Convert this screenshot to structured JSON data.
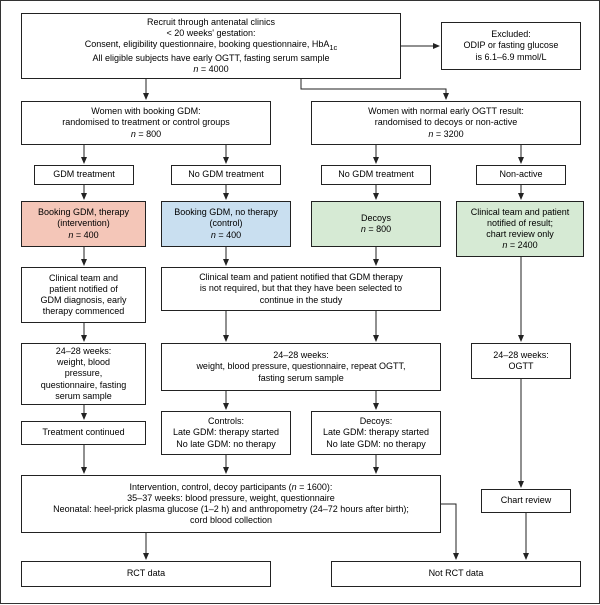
{
  "colors": {
    "border": "#222222",
    "bg": "#ffffff",
    "intervention": "#f4c6b8",
    "control": "#c9dff0",
    "decoys": "#d6ead4",
    "nonactive": "#d6ead4",
    "arrow": "#222222"
  },
  "boxes": {
    "recruit": "Recruit through antenatal clinics<br>&lt; 20 weeks' gestation:<br>Consent, eligibility questionnaire, booking questionnaire, HbA<sub>1c</sub><br>All eligible subjects have early OGTT, fasting serum sample<br><i>n</i> = 4000",
    "excluded": "Excluded:<br>ODIP or fasting glucose<br>is 6.1–6.9 mmol/L",
    "gdmRand": "Women with booking GDM:<br>randomised to treatment or control groups<br><i>n</i> = 800",
    "normalRand": "Women with normal early OGTT result:<br>randomised to decoys or non-active<br><i>n</i> = 3200",
    "gdmTx": "GDM treatment",
    "noGdmTx1": "No GDM treatment",
    "noGdmTx2": "No GDM treatment",
    "nonActive": "Non-active",
    "intervention": "Booking GDM, therapy<br>(intervention)<br><i>n</i> = 400",
    "control": "Booking GDM, no therapy<br>(control)<br><i>n</i> = 400",
    "decoys": "Decoys<br><i>n</i> = 800",
    "nonActiveBox": "Clinical team and patient<br>notified of result;<br>chart review only<br><i>n</i> = 2400",
    "notifyGDM": "Clinical team and<br>patient notified of<br>GDM diagnosis, early<br>therapy commenced",
    "notifyNoReq": "Clinical team and patient notified that GDM therapy<br>is not required, but that they have been selected to<br>continue in the study",
    "w24Int": "24–28 weeks:<br>weight, blood<br>pressure,<br>questionnaire, fasting<br>serum sample",
    "w24Ctrl": "24–28 weeks:<br>weight, blood pressure, questionnaire, repeat OGTT,<br>fasting serum sample",
    "w24Non": "24–28 weeks:<br>OGTT",
    "txCont": "Treatment continued",
    "controlsLate": "Controls:<br>Late GDM: therapy started<br>No late GDM: no therapy",
    "decoysLate": "Decoys:<br>Late GDM: therapy started<br>No late GDM: no therapy",
    "follow": "Intervention, control, decoy participants (<i>n</i> = 1600):<br>35–37 weeks: blood pressure, weight, questionnaire<br>Neonatal: heel-prick plasma glucose (1–2 h) and anthropometry (24–72 hours after birth);<br>cord blood collection",
    "chart": "Chart review",
    "rct": "RCT data",
    "notRct": "Not RCT data"
  }
}
